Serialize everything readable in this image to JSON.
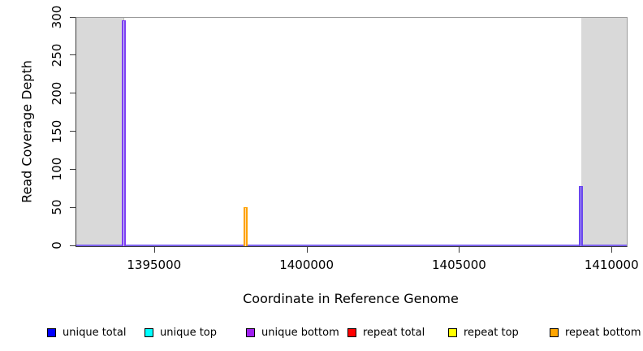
{
  "chart_data": {
    "type": "bar",
    "title": "",
    "xlabel": "Coordinate in Reference Genome",
    "ylabel": "Read Coverage Depth",
    "xlim": [
      1392450,
      1410500
    ],
    "ylim": [
      0,
      300
    ],
    "x_ticks": [
      1395000,
      1400000,
      1405000,
      1410000
    ],
    "y_ticks": [
      0,
      50,
      100,
      150,
      200,
      250,
      300
    ],
    "grid": false,
    "legend_position": "bottom",
    "shaded_regions": [
      {
        "name": "masked-region-left",
        "x0": 1392450,
        "x1": 1394000
      },
      {
        "name": "masked-region-right",
        "x0": 1409000,
        "x1": 1410500
      }
    ],
    "baseline": {
      "y": 0,
      "color": "#7d63ee"
    },
    "series": [
      {
        "name": "unique total",
        "color": "#0000ff",
        "points": [
          {
            "x": 1394000,
            "y": 296
          },
          {
            "x": 1409000,
            "y": 78
          }
        ]
      },
      {
        "name": "unique top",
        "color": "#00ffff",
        "points": []
      },
      {
        "name": "unique bottom",
        "color": "#a020f0",
        "points": [
          {
            "x": 1394000,
            "y": 296
          },
          {
            "x": 1409000,
            "y": 78
          }
        ]
      },
      {
        "name": "repeat total",
        "color": "#ff0000",
        "points": []
      },
      {
        "name": "repeat top",
        "color": "#ffff00",
        "points": []
      },
      {
        "name": "repeat bottom",
        "color": "#ffa500",
        "points": [
          {
            "x": 1398000,
            "y": 50
          }
        ]
      }
    ],
    "spikes": [
      {
        "x": 1394000,
        "y": 296,
        "edge": "#7e3ff2",
        "core": "#cdc6fa"
      },
      {
        "x": 1398000,
        "y": 50,
        "edge": "#ffa200",
        "core": "#ffdfae"
      },
      {
        "x": 1409000,
        "y": 78,
        "edge": "#6a46ee",
        "core": "#a393f5"
      }
    ],
    "legend": [
      {
        "label": "unique total",
        "color": "#0000ff"
      },
      {
        "label": "unique top",
        "color": "#00ffff"
      },
      {
        "label": "unique bottom",
        "color": "#a020f0"
      },
      {
        "label": "repeat total",
        "color": "#ff0000"
      },
      {
        "label": "repeat top",
        "color": "#ffff00"
      },
      {
        "label": "repeat bottom",
        "color": "#ffa500"
      }
    ]
  }
}
